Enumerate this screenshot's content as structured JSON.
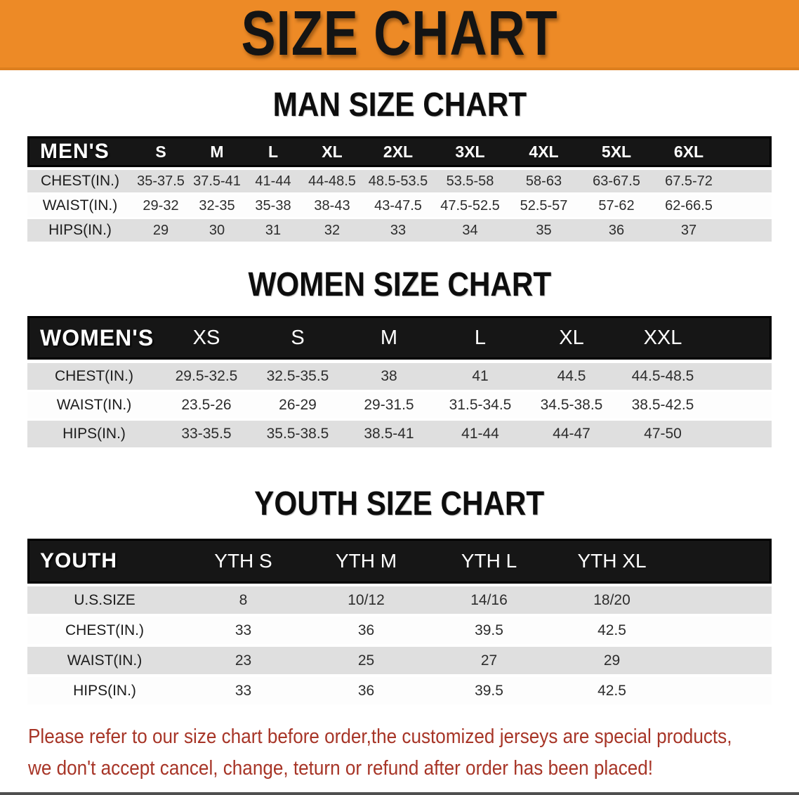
{
  "banner": {
    "title": "SIZE CHART"
  },
  "sections": [
    {
      "title": "MAN SIZE CHART",
      "table": {
        "header_label": "MEN'S",
        "columns": [
          "S",
          "M",
          "L",
          "XL",
          "2XL",
          "3XL",
          "4XL",
          "5XL",
          "6XL"
        ],
        "rows": [
          {
            "label": "CHEST(IN.)",
            "values": [
              "35-37.5",
              "37.5-41",
              "41-44",
              "44-48.5",
              "48.5-53.5",
              "53.5-58",
              "58-63",
              "63-67.5",
              "67.5-72"
            ]
          },
          {
            "label": "WAIST(IN.)",
            "values": [
              "29-32",
              "32-35",
              "35-38",
              "38-43",
              "43-47.5",
              "47.5-52.5",
              "52.5-57",
              "57-62",
              "62-66.5"
            ]
          },
          {
            "label": "HIPS(IN.)",
            "values": [
              "29",
              "30",
              "31",
              "32",
              "33",
              "34",
              "35",
              "36",
              "37"
            ]
          }
        ]
      }
    },
    {
      "title": "WOMEN SIZE CHART",
      "table": {
        "header_label": "WOMEN'S",
        "columns": [
          "XS",
          "S",
          "M",
          "L",
          "XL",
          "XXL"
        ],
        "rows": [
          {
            "label": "CHEST(IN.)",
            "values": [
              "29.5-32.5",
              "32.5-35.5",
              "38",
              "41",
              "44.5",
              "44.5-48.5"
            ]
          },
          {
            "label": "WAIST(IN.)",
            "values": [
              "23.5-26",
              "26-29",
              "29-31.5",
              "31.5-34.5",
              "34.5-38.5",
              "38.5-42.5"
            ]
          },
          {
            "label": "HIPS(IN.)",
            "values": [
              "33-35.5",
              "35.5-38.5",
              "38.5-41",
              "41-44",
              "44-47",
              "47-50"
            ]
          }
        ]
      }
    },
    {
      "title": "YOUTH SIZE CHART",
      "table": {
        "header_label": "YOUTH",
        "columns": [
          "YTH S",
          "YTH M",
          "YTH L",
          "YTH XL"
        ],
        "rows": [
          {
            "label": "U.S.SIZE",
            "values": [
              "8",
              "10/12",
              "14/16",
              "18/20"
            ]
          },
          {
            "label": "CHEST(IN.)",
            "values": [
              "33",
              "36",
              "39.5",
              "42.5"
            ]
          },
          {
            "label": "WAIST(IN.)",
            "values": [
              "23",
              "25",
              "27",
              "29"
            ]
          },
          {
            "label": "HIPS(IN.)",
            "values": [
              "33",
              "36",
              "39.5",
              "42.5"
            ]
          }
        ]
      }
    }
  ],
  "disclaimer": {
    "line1": "Please refer to our size chart before order,the customized jerseys are special products,",
    "line2": "we don't accept cancel, change, teturn or refund after order has been placed!"
  },
  "colors": {
    "banner_orange": "#ED8A26",
    "header_black": "#161616",
    "row_gray": "#DFDFDF",
    "disclaimer_red": "#A73527"
  }
}
